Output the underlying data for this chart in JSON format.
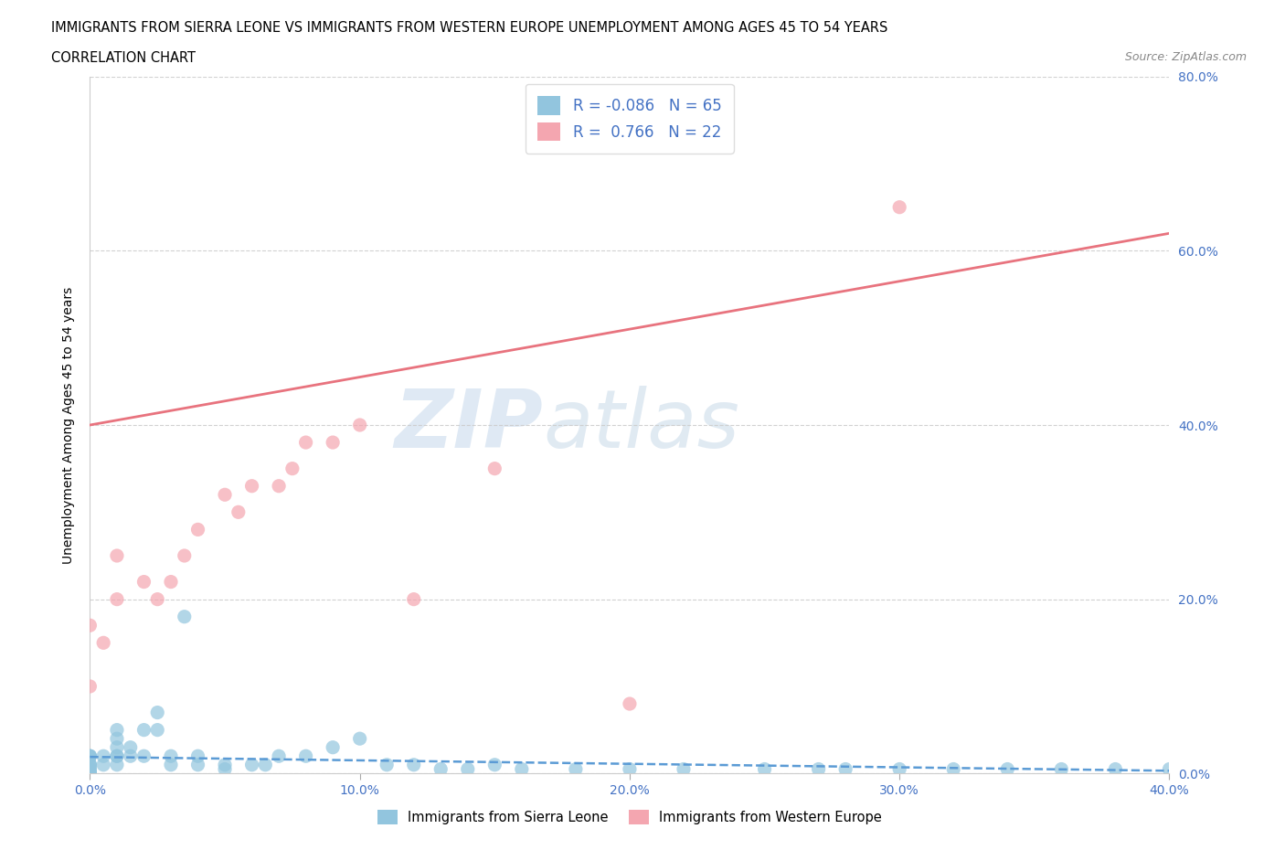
{
  "title_line1": "IMMIGRANTS FROM SIERRA LEONE VS IMMIGRANTS FROM WESTERN EUROPE UNEMPLOYMENT AMONG AGES 45 TO 54 YEARS",
  "title_line2": "CORRELATION CHART",
  "source_text": "Source: ZipAtlas.com",
  "ylabel": "Unemployment Among Ages 45 to 54 years",
  "xlim": [
    0.0,
    0.4
  ],
  "ylim": [
    0.0,
    0.8
  ],
  "xticks": [
    0.0,
    0.1,
    0.2,
    0.3,
    0.4
  ],
  "yticks": [
    0.0,
    0.2,
    0.4,
    0.6,
    0.8
  ],
  "sierra_leone_color": "#92C5DE",
  "western_europe_color": "#F4A6B0",
  "sierra_leone_line_color": "#5B9BD5",
  "western_europe_line_color": "#E8737E",
  "R_sierra": -0.086,
  "N_sierra": 65,
  "R_western": 0.766,
  "N_western": 22,
  "watermark_zip": "ZIP",
  "watermark_atlas": "atlas",
  "legend_label_sierra": "Immigrants from Sierra Leone",
  "legend_label_western": "Immigrants from Western Europe",
  "sierra_leone_x": [
    0.0,
    0.0,
    0.0,
    0.0,
    0.0,
    0.0,
    0.0,
    0.0,
    0.0,
    0.0,
    0.0,
    0.0,
    0.0,
    0.0,
    0.0,
    0.0,
    0.0,
    0.0,
    0.0,
    0.0,
    0.005,
    0.005,
    0.01,
    0.01,
    0.01,
    0.01,
    0.01,
    0.01,
    0.015,
    0.015,
    0.02,
    0.02,
    0.025,
    0.025,
    0.03,
    0.03,
    0.035,
    0.04,
    0.04,
    0.05,
    0.05,
    0.06,
    0.065,
    0.07,
    0.08,
    0.09,
    0.1,
    0.11,
    0.12,
    0.13,
    0.14,
    0.15,
    0.16,
    0.18,
    0.2,
    0.22,
    0.25,
    0.27,
    0.28,
    0.3,
    0.32,
    0.34,
    0.36,
    0.38,
    0.4
  ],
  "sierra_leone_y": [
    0.0,
    0.0,
    0.0,
    0.0,
    0.0,
    0.0,
    0.0,
    0.0,
    0.0,
    0.0,
    0.0,
    0.0,
    0.005,
    0.005,
    0.01,
    0.01,
    0.01,
    0.02,
    0.02,
    0.02,
    0.01,
    0.02,
    0.01,
    0.02,
    0.02,
    0.03,
    0.04,
    0.05,
    0.02,
    0.03,
    0.02,
    0.05,
    0.05,
    0.07,
    0.01,
    0.02,
    0.18,
    0.01,
    0.02,
    0.005,
    0.01,
    0.01,
    0.01,
    0.02,
    0.02,
    0.03,
    0.04,
    0.01,
    0.01,
    0.005,
    0.005,
    0.01,
    0.005,
    0.005,
    0.005,
    0.005,
    0.005,
    0.005,
    0.005,
    0.005,
    0.005,
    0.005,
    0.005,
    0.005,
    0.005
  ],
  "western_europe_x": [
    0.0,
    0.0,
    0.005,
    0.01,
    0.01,
    0.02,
    0.025,
    0.03,
    0.035,
    0.04,
    0.05,
    0.055,
    0.06,
    0.07,
    0.075,
    0.08,
    0.09,
    0.1,
    0.12,
    0.15,
    0.2,
    0.3
  ],
  "western_europe_y": [
    0.1,
    0.17,
    0.15,
    0.2,
    0.25,
    0.22,
    0.2,
    0.22,
    0.25,
    0.28,
    0.32,
    0.3,
    0.33,
    0.33,
    0.35,
    0.38,
    0.38,
    0.4,
    0.2,
    0.35,
    0.08,
    0.65
  ]
}
